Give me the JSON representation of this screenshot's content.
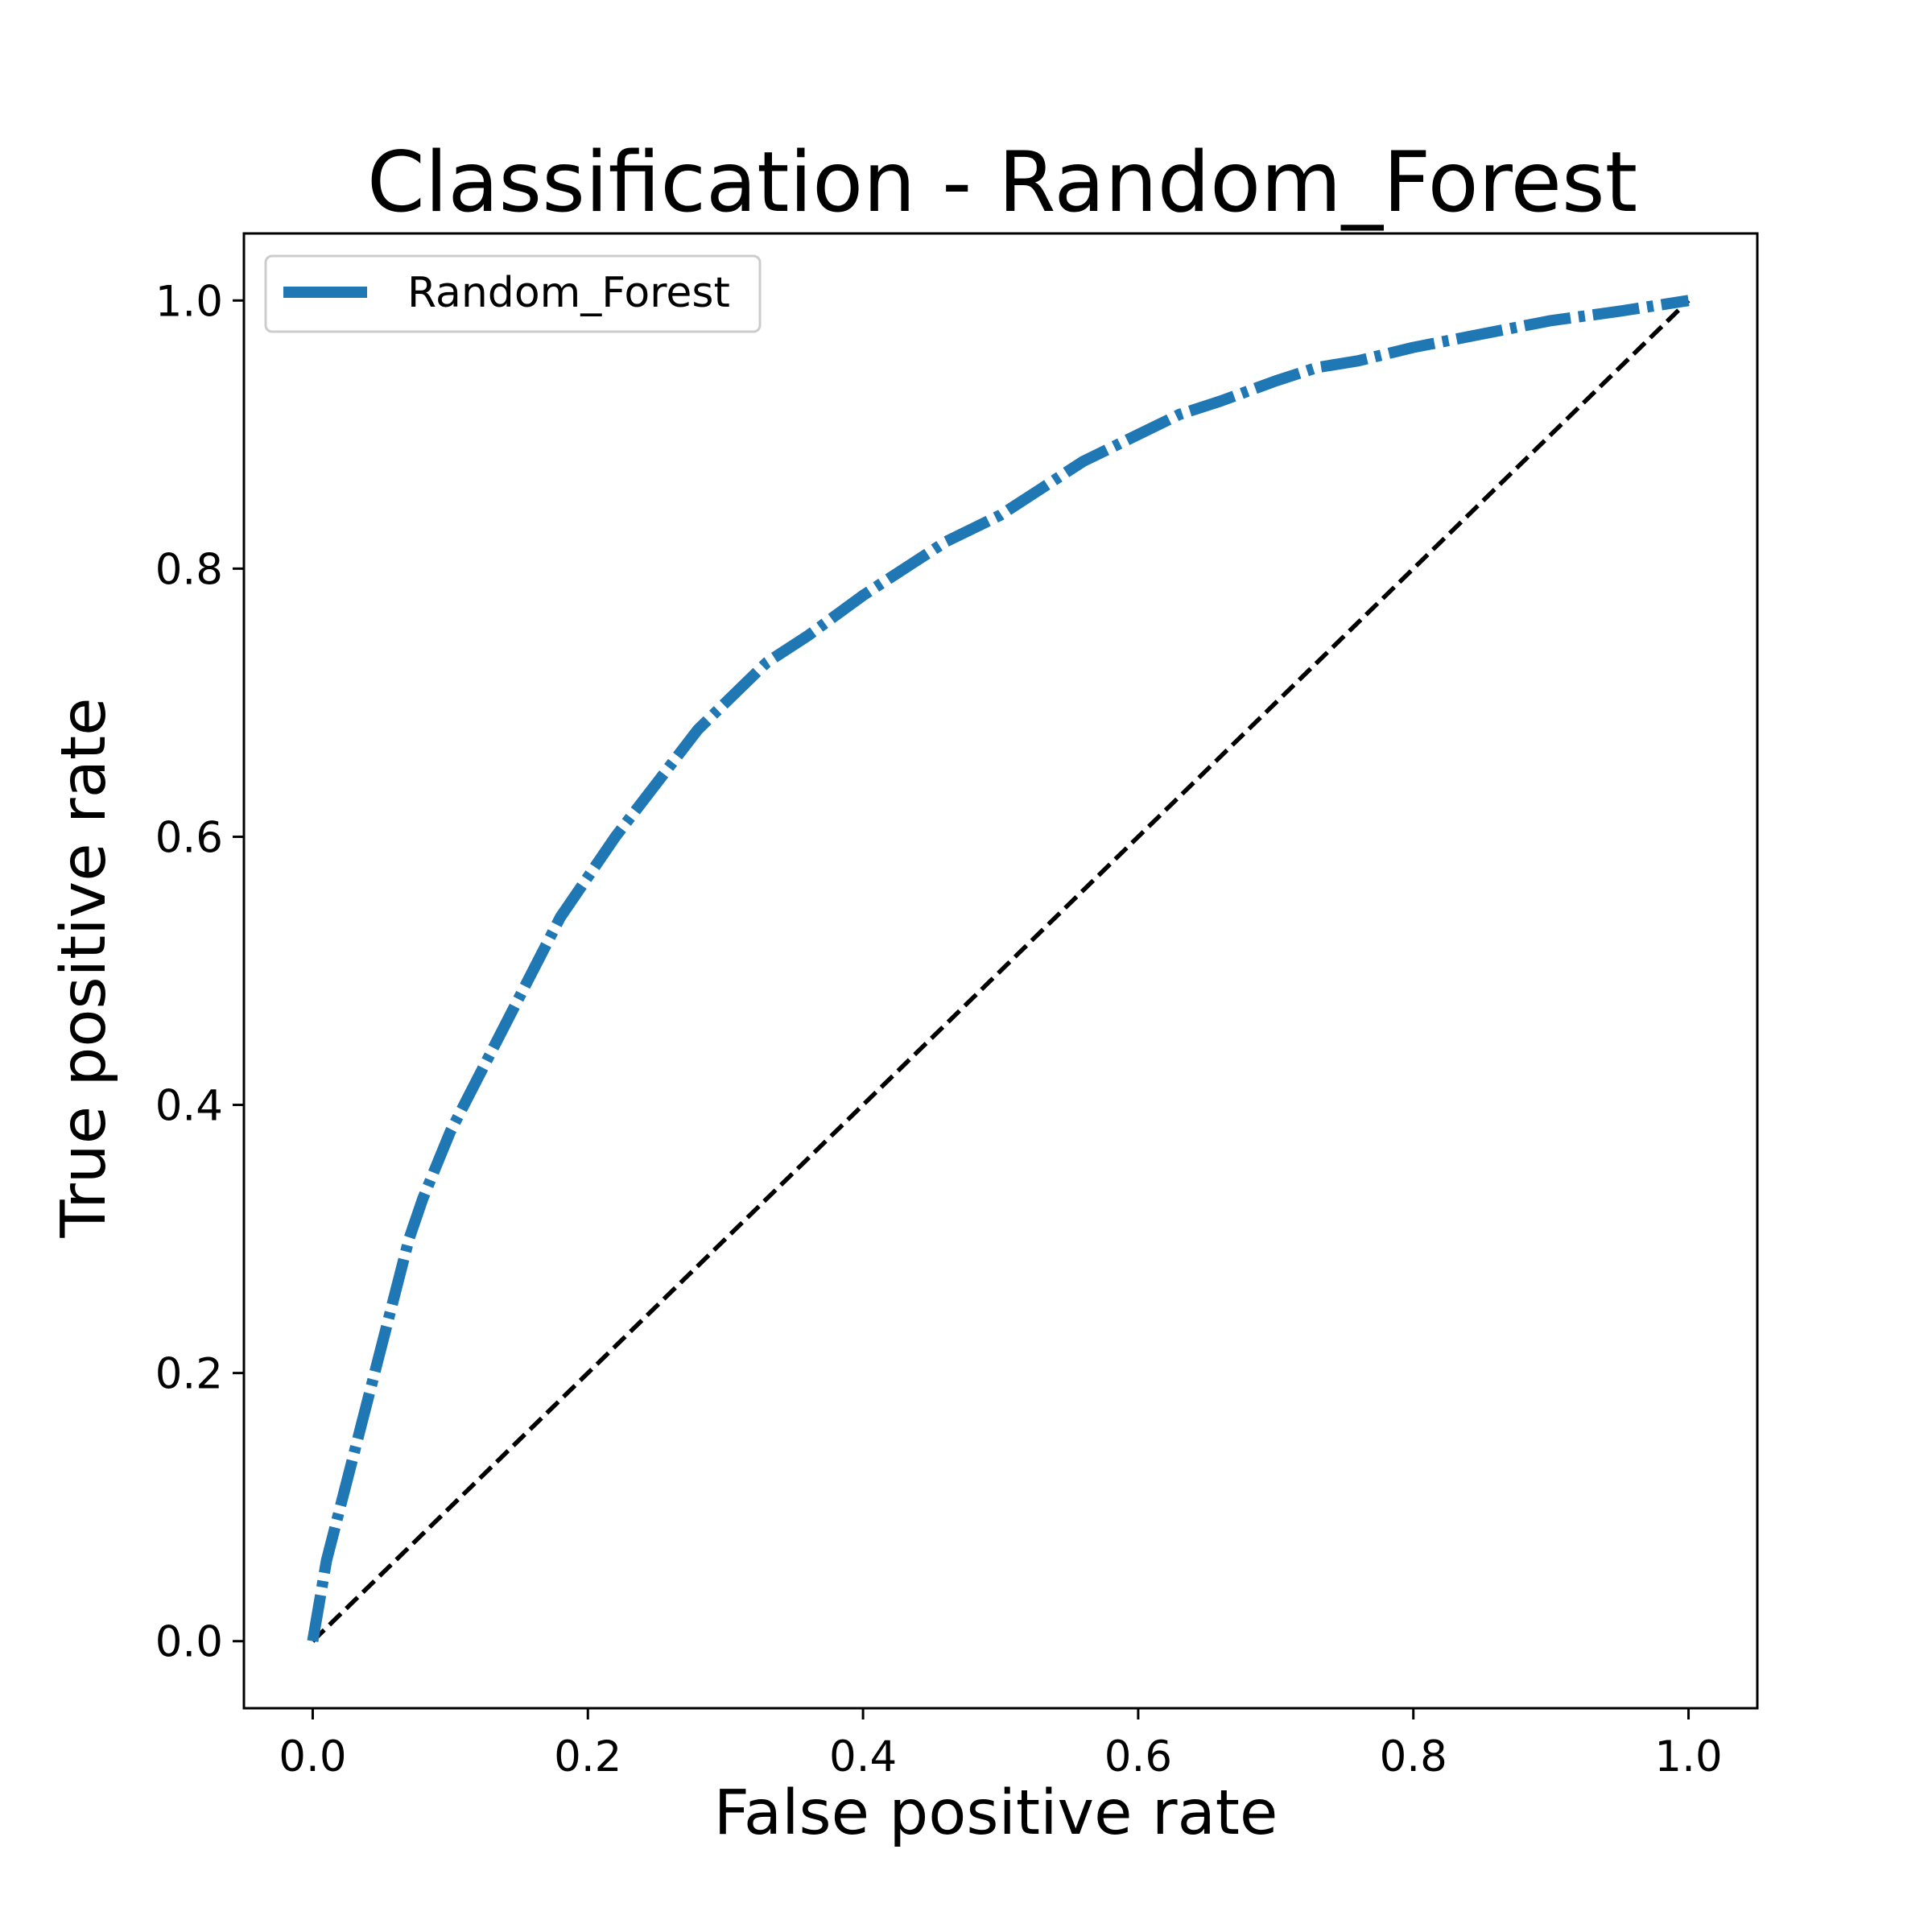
{
  "chart_data": {
    "type": "line",
    "title": "Classification - Random_Forest",
    "xlabel": "False positive rate",
    "ylabel": "True positive rate",
    "xlim": [
      -0.05,
      1.05
    ],
    "ylim": [
      -0.05,
      1.05
    ],
    "xticks": [
      0.0,
      0.2,
      0.4,
      0.6,
      0.8,
      1.0
    ],
    "yticks": [
      0.0,
      0.2,
      0.4,
      0.6,
      0.8,
      1.0
    ],
    "xtick_labels": [
      "0.0",
      "0.2",
      "0.4",
      "0.6",
      "0.8",
      "1.0"
    ],
    "ytick_labels": [
      "0.0",
      "0.2",
      "0.4",
      "0.6",
      "0.8",
      "1.0"
    ],
    "grid": false,
    "legend": {
      "position": "top-left",
      "entries": [
        "Random_Forest"
      ]
    },
    "series": [
      {
        "name": "Random_Forest",
        "color": "#1f77b4",
        "style": "dash-dot",
        "x": [
          0.0,
          0.005,
          0.01,
          0.02,
          0.03,
          0.04,
          0.05,
          0.06,
          0.07,
          0.08,
          0.1,
          0.12,
          0.14,
          0.16,
          0.18,
          0.2,
          0.22,
          0.25,
          0.28,
          0.3,
          0.33,
          0.36,
          0.4,
          0.43,
          0.46,
          0.5,
          0.53,
          0.56,
          0.6,
          0.63,
          0.66,
          0.7,
          0.73,
          0.76,
          0.8,
          0.85,
          0.9,
          0.95,
          1.0
        ],
        "y": [
          0.0,
          0.03,
          0.06,
          0.1,
          0.14,
          0.18,
          0.22,
          0.26,
          0.3,
          0.33,
          0.38,
          0.42,
          0.46,
          0.5,
          0.54,
          0.57,
          0.6,
          0.64,
          0.68,
          0.7,
          0.73,
          0.75,
          0.78,
          0.8,
          0.82,
          0.84,
          0.86,
          0.88,
          0.9,
          0.915,
          0.925,
          0.94,
          0.95,
          0.955,
          0.965,
          0.975,
          0.985,
          0.992,
          1.0
        ]
      }
    ],
    "reference_line": {
      "x": [
        0.0,
        1.0
      ],
      "y": [
        0.0,
        1.0
      ],
      "color": "#000000",
      "style": "dashed"
    }
  }
}
